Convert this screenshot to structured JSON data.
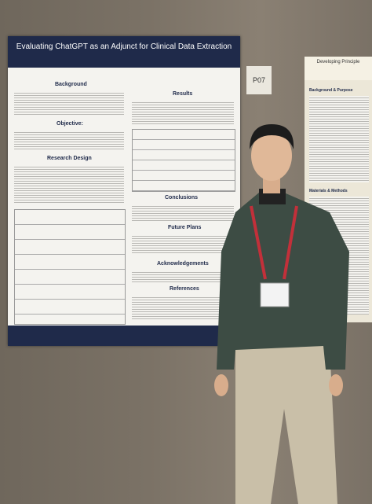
{
  "poster": {
    "title": "Evaluating ChatGPT as an Adjunct for Clinical Data Extraction",
    "left_sections": [
      "Background",
      "Objective:",
      "Research Design"
    ],
    "right_sections": [
      "Results",
      "Conclusions",
      "Future Plans",
      "Acknowledgements",
      "References"
    ]
  },
  "sign": "P07",
  "side_poster": {
    "title": "Developing Principle",
    "sections": [
      "Background & Purpose",
      "Materials & Methods"
    ]
  }
}
